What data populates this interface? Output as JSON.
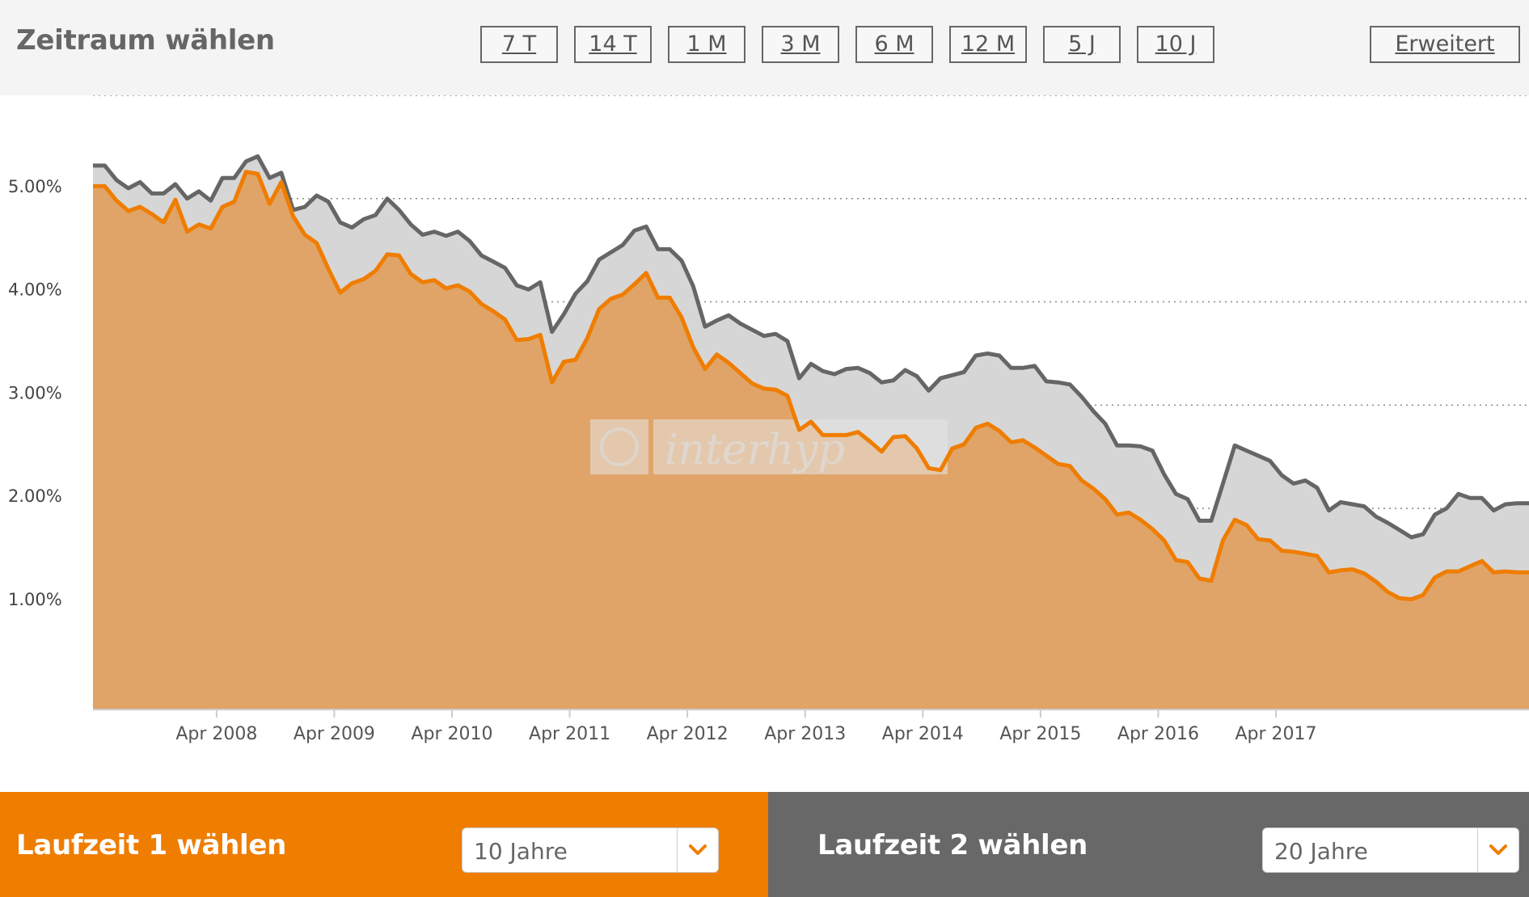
{
  "header": {
    "title": "Zeitraum wählen",
    "buttons": [
      "7 T",
      "14 T",
      "1 M",
      "3 M",
      "6 M",
      "12 M",
      "5 J",
      "10 J"
    ],
    "advanced_label": "Erweitert"
  },
  "watermark": {
    "text": "interhyp"
  },
  "footer": {
    "left": {
      "title": "Laufzeit 1 wählen",
      "selected": "10 Jahre"
    },
    "right": {
      "title": "Laufzeit 2 wählen",
      "selected": "20 Jahre"
    }
  },
  "colors": {
    "accent": "#ef7d00",
    "fill_primary": "#e0a468",
    "fill_secondary": "#d6d6d6",
    "line_secondary": "#666666",
    "panel_dark": "#686868"
  },
  "chart_data": {
    "type": "area",
    "x_ticks": [
      "Apr 2008",
      "Apr 2009",
      "Apr 2010",
      "Apr 2011",
      "Apr 2012",
      "Apr 2013",
      "Apr 2014",
      "Apr 2015",
      "Apr 2016",
      "Apr 2017"
    ],
    "y_ticks": [
      "1.00%",
      "2.00%",
      "3.00%",
      "4.00%",
      "5.00%"
    ],
    "ylim": [
      0.06,
      6.0
    ],
    "grid": true,
    "series": [
      {
        "name": "",
        "values": [
          [
            2007.2,
            5.12
          ],
          [
            2007.3,
            5.12
          ],
          [
            2007.4,
            4.98
          ],
          [
            2007.5,
            4.88
          ],
          [
            2007.6,
            4.92
          ],
          [
            2007.7,
            4.85
          ],
          [
            2007.8,
            4.77
          ],
          [
            2007.9,
            4.99
          ],
          [
            2008.0,
            4.68
          ],
          [
            2008.1,
            4.75
          ],
          [
            2008.2,
            4.71
          ],
          [
            2008.3,
            4.92
          ],
          [
            2008.4,
            4.97
          ],
          [
            2008.5,
            5.26
          ],
          [
            2008.6,
            5.24
          ],
          [
            2008.7,
            4.95
          ],
          [
            2008.8,
            5.16
          ],
          [
            2008.9,
            4.83
          ],
          [
            2009.0,
            4.65
          ],
          [
            2009.1,
            4.57
          ],
          [
            2009.2,
            4.32
          ],
          [
            2009.3,
            4.09
          ],
          [
            2009.4,
            4.18
          ],
          [
            2009.5,
            4.22
          ],
          [
            2009.6,
            4.3
          ],
          [
            2009.7,
            4.46
          ],
          [
            2009.8,
            4.45
          ],
          [
            2009.9,
            4.27
          ],
          [
            2010.0,
            4.19
          ],
          [
            2010.1,
            4.21
          ],
          [
            2010.2,
            4.13
          ],
          [
            2010.3,
            4.16
          ],
          [
            2010.4,
            4.1
          ],
          [
            2010.5,
            3.98
          ],
          [
            2010.6,
            3.91
          ],
          [
            2010.7,
            3.83
          ],
          [
            2010.8,
            3.63
          ],
          [
            2010.9,
            3.64
          ],
          [
            2011.0,
            3.68
          ],
          [
            2011.1,
            3.22
          ],
          [
            2011.2,
            3.42
          ],
          [
            2011.3,
            3.44
          ],
          [
            2011.4,
            3.65
          ],
          [
            2011.5,
            3.93
          ],
          [
            2011.6,
            4.03
          ],
          [
            2011.7,
            4.07
          ],
          [
            2011.8,
            4.17
          ],
          [
            2011.9,
            4.28
          ],
          [
            2012.0,
            4.04
          ],
          [
            2012.1,
            4.04
          ],
          [
            2012.2,
            3.85
          ],
          [
            2012.3,
            3.56
          ],
          [
            2012.4,
            3.35
          ],
          [
            2012.5,
            3.49
          ],
          [
            2012.6,
            3.41
          ],
          [
            2012.7,
            3.31
          ],
          [
            2012.8,
            3.21
          ],
          [
            2012.9,
            3.16
          ],
          [
            2013.0,
            3.15
          ],
          [
            2013.1,
            3.09
          ],
          [
            2013.2,
            2.76
          ],
          [
            2013.3,
            2.84
          ],
          [
            2013.4,
            2.71
          ],
          [
            2013.5,
            2.71
          ],
          [
            2013.6,
            2.71
          ],
          [
            2013.7,
            2.74
          ],
          [
            2013.8,
            2.65
          ],
          [
            2013.9,
            2.55
          ],
          [
            2014.0,
            2.69
          ],
          [
            2014.1,
            2.7
          ],
          [
            2014.2,
            2.58
          ],
          [
            2014.3,
            2.39
          ],
          [
            2014.4,
            2.37
          ],
          [
            2014.5,
            2.58
          ],
          [
            2014.6,
            2.62
          ],
          [
            2014.7,
            2.78
          ],
          [
            2014.8,
            2.82
          ],
          [
            2014.9,
            2.75
          ],
          [
            2015.0,
            2.64
          ],
          [
            2015.1,
            2.66
          ],
          [
            2015.2,
            2.59
          ],
          [
            2015.3,
            2.51
          ],
          [
            2015.4,
            2.43
          ],
          [
            2015.5,
            2.41
          ],
          [
            2015.6,
            2.27
          ],
          [
            2015.7,
            2.19
          ],
          [
            2015.8,
            2.09
          ],
          [
            2015.9,
            1.94
          ],
          [
            2016.0,
            1.96
          ],
          [
            2016.1,
            1.89
          ],
          [
            2016.2,
            1.8
          ],
          [
            2016.3,
            1.69
          ],
          [
            2016.4,
            1.5
          ],
          [
            2016.5,
            1.48
          ],
          [
            2016.6,
            1.32
          ],
          [
            2016.7,
            1.3
          ],
          [
            2016.8,
            1.69
          ],
          [
            2016.9,
            1.89
          ],
          [
            2017.0,
            1.84
          ],
          [
            2017.1,
            1.7
          ],
          [
            2017.2,
            1.69
          ],
          [
            2017.3,
            1.59
          ],
          [
            2017.4,
            1.58
          ],
          [
            2017.5,
            1.56
          ],
          [
            2017.6,
            1.54
          ],
          [
            2017.7,
            1.38
          ],
          [
            2017.8,
            1.4
          ],
          [
            2017.9,
            1.41
          ],
          [
            2018.0,
            1.37
          ],
          [
            2018.1,
            1.29
          ],
          [
            2018.2,
            1.19
          ],
          [
            2018.3,
            1.13
          ],
          [
            2018.4,
            1.12
          ],
          [
            2018.5,
            1.16
          ],
          [
            2018.6,
            1.33
          ],
          [
            2018.7,
            1.39
          ],
          [
            2018.8,
            1.39
          ],
          [
            2018.9,
            1.44
          ],
          [
            2019.0,
            1.49
          ],
          [
            2019.1,
            1.38
          ],
          [
            2019.2,
            1.39
          ],
          [
            2019.3,
            1.38
          ],
          [
            2019.4,
            1.38
          ]
        ]
      },
      {
        "name": "",
        "values": [
          [
            2007.2,
            5.32
          ],
          [
            2007.3,
            5.32
          ],
          [
            2007.4,
            5.18
          ],
          [
            2007.5,
            5.1
          ],
          [
            2007.6,
            5.16
          ],
          [
            2007.7,
            5.05
          ],
          [
            2007.8,
            5.05
          ],
          [
            2007.9,
            5.14
          ],
          [
            2008.0,
            5.0
          ],
          [
            2008.1,
            5.07
          ],
          [
            2008.2,
            4.98
          ],
          [
            2008.3,
            5.2
          ],
          [
            2008.4,
            5.2
          ],
          [
            2008.5,
            5.36
          ],
          [
            2008.6,
            5.41
          ],
          [
            2008.7,
            5.2
          ],
          [
            2008.8,
            5.25
          ],
          [
            2008.9,
            4.89
          ],
          [
            2009.0,
            4.92
          ],
          [
            2009.1,
            5.03
          ],
          [
            2009.2,
            4.97
          ],
          [
            2009.3,
            4.77
          ],
          [
            2009.4,
            4.72
          ],
          [
            2009.5,
            4.8
          ],
          [
            2009.6,
            4.84
          ],
          [
            2009.7,
            5.0
          ],
          [
            2009.8,
            4.89
          ],
          [
            2009.9,
            4.75
          ],
          [
            2010.0,
            4.65
          ],
          [
            2010.1,
            4.68
          ],
          [
            2010.2,
            4.64
          ],
          [
            2010.3,
            4.68
          ],
          [
            2010.4,
            4.59
          ],
          [
            2010.5,
            4.45
          ],
          [
            2010.6,
            4.39
          ],
          [
            2010.7,
            4.33
          ],
          [
            2010.8,
            4.16
          ],
          [
            2010.9,
            4.12
          ],
          [
            2011.0,
            4.19
          ],
          [
            2011.1,
            3.71
          ],
          [
            2011.2,
            3.88
          ],
          [
            2011.3,
            4.08
          ],
          [
            2011.4,
            4.2
          ],
          [
            2011.5,
            4.41
          ],
          [
            2011.6,
            4.48
          ],
          [
            2011.7,
            4.55
          ],
          [
            2011.8,
            4.69
          ],
          [
            2011.9,
            4.73
          ],
          [
            2012.0,
            4.51
          ],
          [
            2012.1,
            4.51
          ],
          [
            2012.2,
            4.4
          ],
          [
            2012.3,
            4.15
          ],
          [
            2012.4,
            3.76
          ],
          [
            2012.5,
            3.82
          ],
          [
            2012.6,
            3.87
          ],
          [
            2012.7,
            3.79
          ],
          [
            2012.8,
            3.73
          ],
          [
            2012.9,
            3.67
          ],
          [
            2013.0,
            3.69
          ],
          [
            2013.1,
            3.62
          ],
          [
            2013.2,
            3.26
          ],
          [
            2013.3,
            3.4
          ],
          [
            2013.4,
            3.33
          ],
          [
            2013.5,
            3.3
          ],
          [
            2013.6,
            3.35
          ],
          [
            2013.7,
            3.36
          ],
          [
            2013.8,
            3.31
          ],
          [
            2013.9,
            3.22
          ],
          [
            2014.0,
            3.24
          ],
          [
            2014.1,
            3.34
          ],
          [
            2014.2,
            3.28
          ],
          [
            2014.3,
            3.14
          ],
          [
            2014.4,
            3.26
          ],
          [
            2014.5,
            3.29
          ],
          [
            2014.6,
            3.32
          ],
          [
            2014.7,
            3.48
          ],
          [
            2014.8,
            3.5
          ],
          [
            2014.9,
            3.48
          ],
          [
            2015.0,
            3.36
          ],
          [
            2015.1,
            3.36
          ],
          [
            2015.2,
            3.38
          ],
          [
            2015.3,
            3.23
          ],
          [
            2015.4,
            3.22
          ],
          [
            2015.5,
            3.2
          ],
          [
            2015.6,
            3.08
          ],
          [
            2015.7,
            2.94
          ],
          [
            2015.8,
            2.82
          ],
          [
            2015.9,
            2.61
          ],
          [
            2016.0,
            2.61
          ],
          [
            2016.1,
            2.6
          ],
          [
            2016.2,
            2.56
          ],
          [
            2016.3,
            2.33
          ],
          [
            2016.4,
            2.14
          ],
          [
            2016.5,
            2.09
          ],
          [
            2016.6,
            1.88
          ],
          [
            2016.7,
            1.88
          ],
          [
            2016.8,
            2.24
          ],
          [
            2016.9,
            2.61
          ],
          [
            2017.0,
            2.56
          ],
          [
            2017.1,
            2.51
          ],
          [
            2017.2,
            2.46
          ],
          [
            2017.3,
            2.32
          ],
          [
            2017.4,
            2.24
          ],
          [
            2017.5,
            2.27
          ],
          [
            2017.6,
            2.2
          ],
          [
            2017.7,
            1.98
          ],
          [
            2017.8,
            2.06
          ],
          [
            2017.9,
            2.04
          ],
          [
            2018.0,
            2.02
          ],
          [
            2018.1,
            1.92
          ],
          [
            2018.2,
            1.86
          ],
          [
            2018.3,
            1.79
          ],
          [
            2018.4,
            1.72
          ],
          [
            2018.5,
            1.75
          ],
          [
            2018.6,
            1.94
          ],
          [
            2018.7,
            2.0
          ],
          [
            2018.8,
            2.14
          ],
          [
            2018.9,
            2.1
          ],
          [
            2019.0,
            2.1
          ],
          [
            2019.1,
            1.98
          ],
          [
            2019.2,
            2.04
          ],
          [
            2019.3,
            2.05
          ],
          [
            2019.4,
            2.05
          ]
        ]
      }
    ]
  }
}
